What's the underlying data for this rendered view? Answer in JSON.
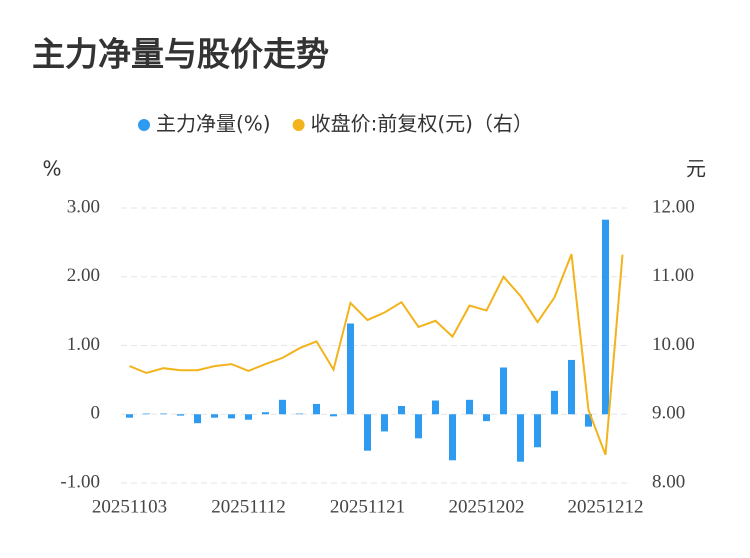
{
  "chart_data": {
    "type": "bar_line",
    "title": "主力净量与股价走势",
    "ylabel": "%",
    "y2label": "元",
    "categories": [
      "20251103",
      null,
      null,
      null,
      null,
      null,
      null,
      "20251112",
      null,
      null,
      null,
      null,
      null,
      null,
      "20251121",
      null,
      null,
      null,
      null,
      null,
      null,
      "20251202",
      null,
      null,
      null,
      null,
      null,
      null,
      "20251212",
      null
    ],
    "series": [
      {
        "name": "主力净量(%)",
        "color": "#2f9bf0",
        "kind": "bar",
        "values": [
          -0.05,
          0.01,
          0.01,
          -0.02,
          -0.13,
          -0.05,
          -0.06,
          -0.08,
          0.03,
          0.21,
          0.01,
          0.15,
          -0.03,
          1.32,
          -0.53,
          -0.25,
          0.12,
          -0.35,
          0.2,
          -0.67,
          0.21,
          -0.1,
          0.68,
          -0.69,
          -0.48,
          0.34,
          0.79,
          -0.18,
          2.83,
          0
        ]
      },
      {
        "name": "收盘价:前复权(元)（右）",
        "color": "#f2b31c",
        "kind": "line",
        "axis": "y2",
        "values": [
          9.7,
          9.6,
          9.67,
          9.64,
          9.64,
          9.7,
          9.73,
          9.63,
          9.73,
          9.82,
          9.96,
          10.06,
          9.65,
          10.62,
          10.37,
          10.48,
          10.63,
          10.27,
          10.36,
          10.13,
          10.58,
          10.51,
          11.0,
          10.72,
          10.34,
          10.7,
          11.33,
          9.06,
          8.41,
          11.32
        ]
      }
    ],
    "ylim": [
      -1,
      3
    ],
    "yticks": [
      {
        "value": -1,
        "label": "-1.00"
      },
      0,
      {
        "value": 1,
        "label": "1.00"
      },
      {
        "value": 2,
        "label": "2.00"
      },
      {
        "value": 3,
        "label": "3.00"
      }
    ],
    "y2lim": [
      8,
      12
    ],
    "y2ticks": [
      {
        "value": 8,
        "label": "8.00"
      },
      {
        "value": 9,
        "label": "9.00"
      },
      {
        "value": 10,
        "label": "10.00"
      },
      {
        "value": 11,
        "label": "11.00"
      },
      {
        "value": 12,
        "label": "12.00"
      }
    ],
    "grid": true
  }
}
